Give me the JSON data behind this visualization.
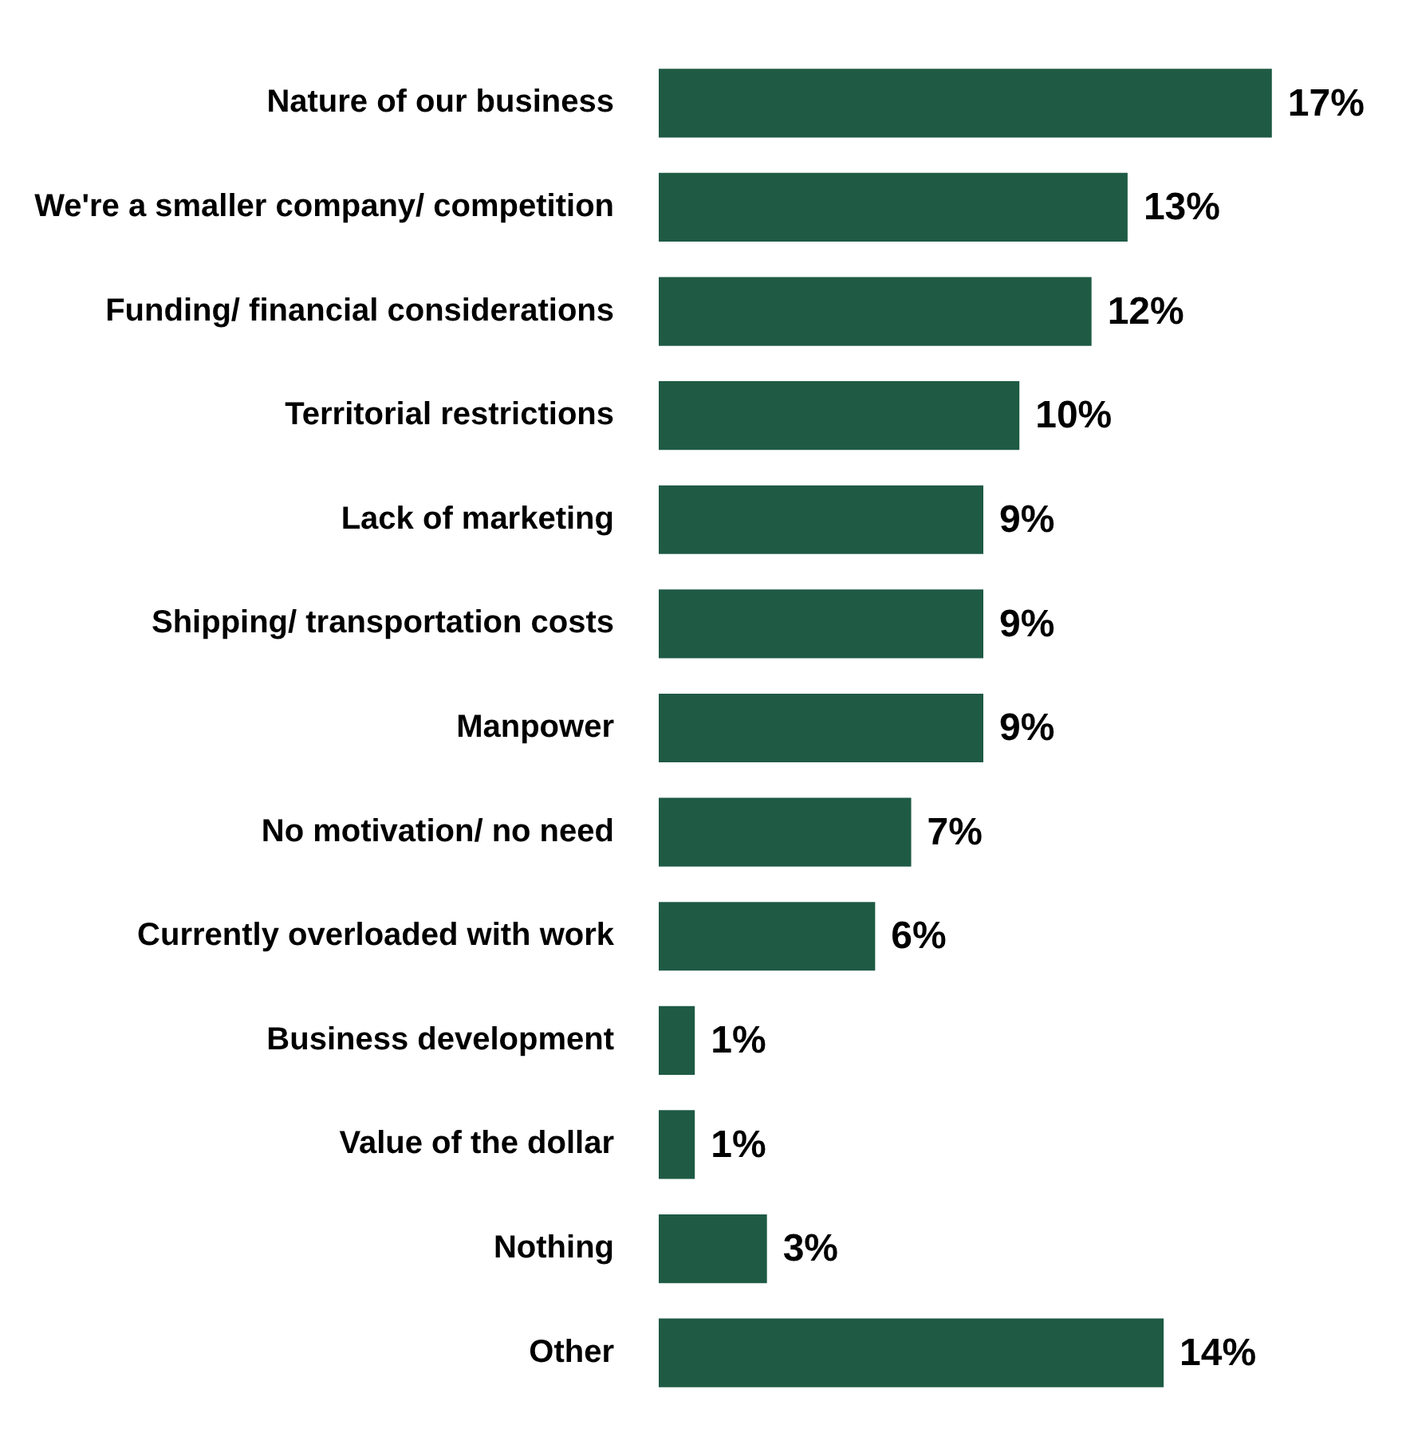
{
  "chart_data": {
    "type": "bar",
    "orientation": "horizontal",
    "categories": [
      "Nature of our business",
      "We're a smaller company/ competition",
      "Funding/ financial considerations",
      "Territorial restrictions",
      "Lack of marketing",
      "Shipping/ transportation costs",
      "Manpower",
      "No motivation/ no need",
      "Currently overloaded with work",
      "Business development",
      "Value of the dollar",
      "Nothing",
      "Other"
    ],
    "values": [
      17,
      13,
      12,
      10,
      9,
      9,
      9,
      7,
      6,
      1,
      1,
      3,
      14
    ],
    "value_labels": [
      "17%",
      "13%",
      "12%",
      "10%",
      "9%",
      "9%",
      "9%",
      "7%",
      "6%",
      "1%",
      "1%",
      "3%",
      "14%"
    ],
    "color": "#1e5a44",
    "tick_labels": "y"
  }
}
